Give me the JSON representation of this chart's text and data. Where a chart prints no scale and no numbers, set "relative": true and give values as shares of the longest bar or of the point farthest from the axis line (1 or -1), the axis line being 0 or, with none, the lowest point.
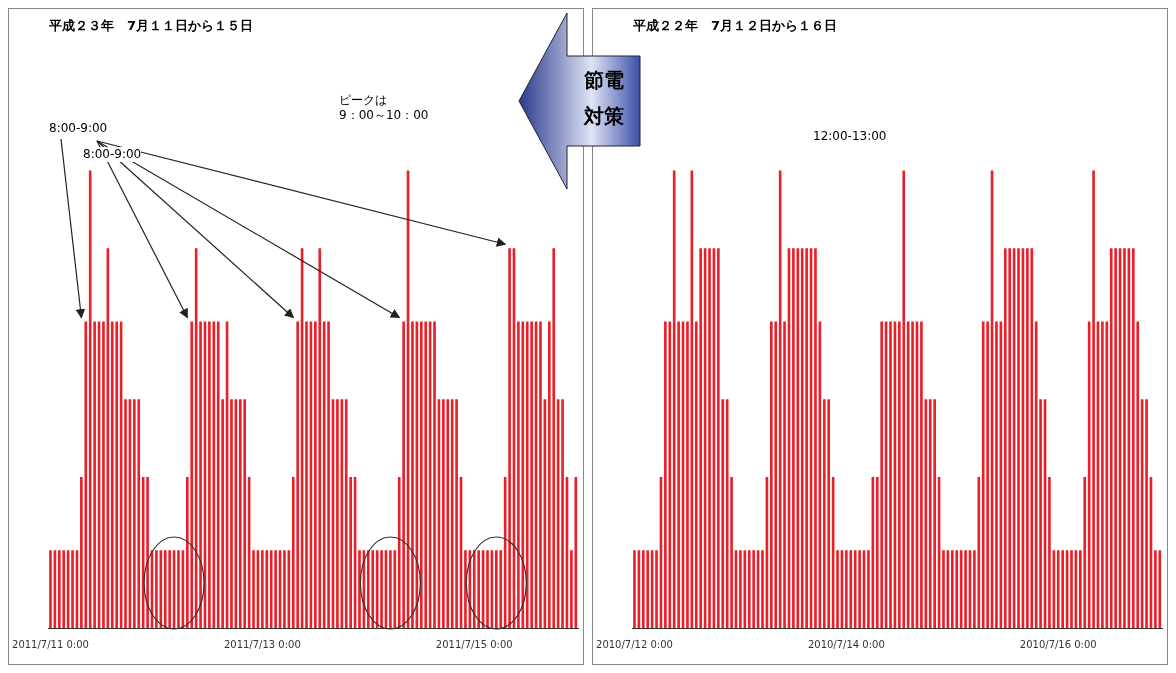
{
  "chart_data": [
    {
      "type": "bar",
      "title": "平成２３年　7月１１日から１５日",
      "relative": true,
      "color": "#e8202a",
      "categories": [
        "2011/7/11 0:00",
        null,
        null,
        null,
        null,
        null,
        null,
        null,
        null,
        null,
        null,
        null,
        null,
        null,
        null,
        null,
        null,
        null,
        null,
        null,
        null,
        null,
        null,
        null,
        null,
        null,
        null,
        null,
        null,
        null,
        null,
        null,
        null,
        null,
        null,
        null,
        null,
        null,
        null,
        null,
        null,
        null,
        null,
        null,
        null,
        null,
        null,
        null,
        "2011/7/13 0:00",
        null,
        null,
        null,
        null,
        null,
        null,
        null,
        null,
        null,
        null,
        null,
        null,
        null,
        null,
        null,
        null,
        null,
        null,
        null,
        null,
        null,
        null,
        null,
        null,
        null,
        null,
        null,
        null,
        null,
        null,
        null,
        null,
        null,
        null,
        null,
        null,
        null,
        null,
        null,
        null,
        null,
        null,
        null,
        null,
        null,
        null,
        null,
        "2011/7/15 0:00",
        null,
        null,
        null,
        null,
        null,
        null,
        null,
        null,
        null,
        null,
        null,
        null,
        null,
        null,
        null,
        null,
        null,
        null,
        null,
        null,
        null,
        null,
        null
      ],
      "values": [
        0.17,
        0.17,
        0.17,
        0.17,
        0.17,
        0.17,
        0.17,
        0.33,
        0.67,
        1,
        0.67,
        0.67,
        0.67,
        0.83,
        0.67,
        0.67,
        0.67,
        0.5,
        0.5,
        0.5,
        0.5,
        0.33,
        0.33,
        0.17,
        0.17,
        0.17,
        0.17,
        0.17,
        0.17,
        0.17,
        0.17,
        0.33,
        0.67,
        0.83,
        0.67,
        0.67,
        0.67,
        0.67,
        0.67,
        0.5,
        0.67,
        0.5,
        0.5,
        0.5,
        0.5,
        0.33,
        0.17,
        0.17,
        0.17,
        0.17,
        0.17,
        0.17,
        0.17,
        0.17,
        0.17,
        0.33,
        0.67,
        0.83,
        0.67,
        0.67,
        0.67,
        0.83,
        0.67,
        0.67,
        0.5,
        0.5,
        0.5,
        0.5,
        0.33,
        0.33,
        0.17,
        0.17,
        0.17,
        0.17,
        0.17,
        0.17,
        0.17,
        0.17,
        0.17,
        0.33,
        0.67,
        1,
        0.67,
        0.67,
        0.67,
        0.67,
        0.67,
        0.67,
        0.5,
        0.5,
        0.5,
        0.5,
        0.5,
        0.33,
        0.17,
        0.17,
        0.17,
        0.17,
        0.17,
        0.17,
        0.17,
        0.17,
        0.17,
        0.33,
        0.83,
        0.83,
        0.67,
        0.67,
        0.67,
        0.67,
        0.67,
        0.67,
        0.5,
        0.67,
        0.83,
        0.5,
        0.5,
        0.33,
        0.17,
        0.33
      ],
      "annotations": [
        "8:00-9:00",
        "8:00-9:00",
        "ピークは\n9：00～10：00",
        "節電",
        "対策"
      ]
    },
    {
      "type": "bar",
      "title": "平成２２年　7月１２日から１６日",
      "relative": true,
      "color": "#e8202a",
      "categories": [
        "2010/7/12 0:00",
        null,
        null,
        null,
        null,
        null,
        null,
        null,
        null,
        null,
        null,
        null,
        null,
        null,
        null,
        null,
        null,
        null,
        null,
        null,
        null,
        null,
        null,
        null,
        null,
        null,
        null,
        null,
        null,
        null,
        null,
        null,
        null,
        null,
        null,
        null,
        null,
        null,
        null,
        null,
        null,
        null,
        null,
        null,
        null,
        null,
        null,
        null,
        "2010/7/14 0:00",
        null,
        null,
        null,
        null,
        null,
        null,
        null,
        null,
        null,
        null,
        null,
        null,
        null,
        null,
        null,
        null,
        null,
        null,
        null,
        null,
        null,
        null,
        null,
        null,
        null,
        null,
        null,
        null,
        null,
        null,
        null,
        null,
        null,
        null,
        null,
        null,
        null,
        null,
        null,
        null,
        null,
        null,
        null,
        null,
        null,
        null,
        null,
        "2010/7/16 0:00",
        null,
        null,
        null,
        null,
        null,
        null,
        null,
        null,
        null,
        null,
        null,
        null,
        null,
        null,
        null,
        null,
        null,
        null,
        null,
        null,
        null,
        null,
        null
      ],
      "values": [
        0.17,
        0.17,
        0.17,
        0.17,
        0.17,
        0.17,
        0.33,
        0.67,
        0.67,
        1,
        0.67,
        0.67,
        0.67,
        1,
        0.67,
        0.83,
        0.83,
        0.83,
        0.83,
        0.83,
        0.5,
        0.5,
        0.33,
        0.17,
        0.17,
        0.17,
        0.17,
        0.17,
        0.17,
        0.17,
        0.33,
        0.67,
        0.67,
        1,
        0.67,
        0.83,
        0.83,
        0.83,
        0.83,
        0.83,
        0.83,
        0.83,
        0.67,
        0.5,
        0.5,
        0.33,
        0.17,
        0.17,
        0.17,
        0.17,
        0.17,
        0.17,
        0.17,
        0.17,
        0.33,
        0.33,
        0.67,
        0.67,
        0.67,
        0.67,
        0.67,
        1,
        0.67,
        0.67,
        0.67,
        0.67,
        0.5,
        0.5,
        0.5,
        0.33,
        0.17,
        0.17,
        0.17,
        0.17,
        0.17,
        0.17,
        0.17,
        0.17,
        0.33,
        0.67,
        0.67,
        1,
        0.67,
        0.67,
        0.83,
        0.83,
        0.83,
        0.83,
        0.83,
        0.83,
        0.83,
        0.67,
        0.5,
        0.5,
        0.33,
        0.17,
        0.17,
        0.17,
        0.17,
        0.17,
        0.17,
        0.17,
        0.33,
        0.67,
        1,
        0.67,
        0.67,
        0.67,
        0.83,
        0.83,
        0.83,
        0.83,
        0.83,
        0.83,
        0.67,
        0.5,
        0.5,
        0.33,
        0.17,
        0.17
      ],
      "annotations": [
        "12:00-13:00"
      ]
    }
  ]
}
